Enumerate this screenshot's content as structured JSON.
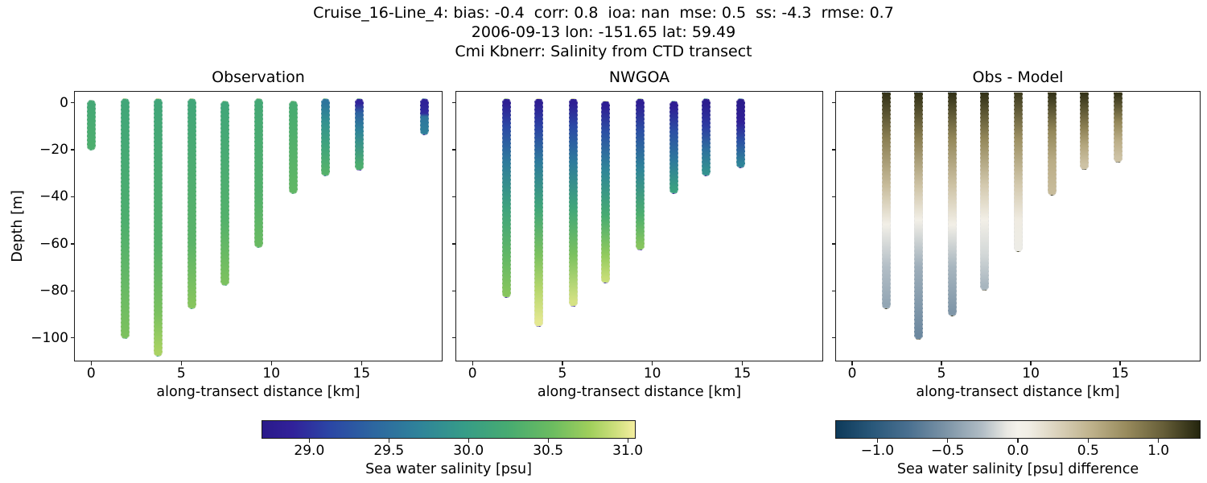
{
  "figure": {
    "title_line1": "Cruise_16-Line_4: bias: -0.4  corr: 0.8  ioa: nan  mse: 0.5  ss: -4.3  rmse: 0.7",
    "title_line2": "2006-09-13 lon: -151.65 lat: 59.49",
    "title_line3": "Cmi Kbnerr: Salinity from CTD transect"
  },
  "y_axis": {
    "label": "Depth [m]",
    "ticks": [
      "0",
      "−20",
      "−40",
      "−60",
      "−80",
      "−100"
    ],
    "tick_values": [
      0,
      -20,
      -40,
      -60,
      -80,
      -100
    ],
    "ylim": [
      5,
      -110
    ]
  },
  "x_axis": {
    "label": "along-transect distance [km]",
    "ticks": [
      "0",
      "5",
      "10",
      "15"
    ],
    "tick_values": [
      0,
      5,
      10,
      15
    ],
    "xlim": [
      -0.95,
      19.5
    ]
  },
  "chart_data": {
    "type": "scatter",
    "description": "Three-panel CTD transect: vertical salinity profiles colored by value; depth [m] vs along-transect distance [km]",
    "panels": [
      {
        "title": "Observation",
        "colorbar_index": 0,
        "flat_top": false,
        "bars": [
          {
            "x_km": 0.0,
            "profile": [
              [
                -0.8,
                30.2
              ],
              [
                -18.5,
                30.3
              ]
            ]
          },
          {
            "x_km": 1.9,
            "profile": [
              [
                0,
                30.15
              ],
              [
                -50,
                30.3
              ],
              [
                -98.5,
                30.6
              ]
            ]
          },
          {
            "x_km": 3.7,
            "profile": [
              [
                0,
                30.15
              ],
              [
                -60,
                30.35
              ],
              [
                -90,
                30.6
              ],
              [
                -106,
                30.8
              ]
            ]
          },
          {
            "x_km": 5.6,
            "profile": [
              [
                0,
                30.15
              ],
              [
                -60,
                30.4
              ],
              [
                -86,
                30.65
              ]
            ]
          },
          {
            "x_km": 7.4,
            "profile": [
              [
                -1,
                30.15
              ],
              [
                -50,
                30.35
              ],
              [
                -76,
                30.6
              ]
            ]
          },
          {
            "x_km": 9.3,
            "profile": [
              [
                0,
                30.2
              ],
              [
                -40,
                30.35
              ],
              [
                -60,
                30.5
              ]
            ]
          },
          {
            "x_km": 11.2,
            "profile": [
              [
                -1,
                30.25
              ],
              [
                -37,
                30.45
              ]
            ]
          },
          {
            "x_km": 13.0,
            "profile": [
              [
                0,
                29.55
              ],
              [
                -8,
                29.85
              ],
              [
                -18,
                30.1
              ],
              [
                -29.5,
                30.35
              ]
            ]
          },
          {
            "x_km": 14.9,
            "profile": [
              [
                0,
                28.9
              ],
              [
                -4,
                29.35
              ],
              [
                -12,
                29.7
              ],
              [
                -27,
                30.3
              ]
            ]
          },
          {
            "x_km": 18.5,
            "profile": [
              [
                0,
                28.85
              ],
              [
                -4.5,
                28.95
              ],
              [
                -6,
                29.55
              ],
              [
                -12,
                29.65
              ]
            ]
          }
        ]
      },
      {
        "title": "NWGOA",
        "colorbar_index": 0,
        "flat_top": false,
        "bars": [
          {
            "x_km": 1.9,
            "profile": [
              [
                0,
                28.8
              ],
              [
                -10,
                29.15
              ],
              [
                -25,
                29.6
              ],
              [
                -45,
                30.1
              ],
              [
                -65,
                30.45
              ],
              [
                -81,
                30.65
              ]
            ]
          },
          {
            "x_km": 3.7,
            "profile": [
              [
                0,
                28.8
              ],
              [
                -10,
                29.1
              ],
              [
                -25,
                29.6
              ],
              [
                -45,
                30.15
              ],
              [
                -65,
                30.6
              ],
              [
                -80,
                30.85
              ],
              [
                -93.5,
                31.0
              ]
            ]
          },
          {
            "x_km": 5.6,
            "profile": [
              [
                0,
                28.8
              ],
              [
                -10,
                29.15
              ],
              [
                -25,
                29.6
              ],
              [
                -45,
                30.15
              ],
              [
                -65,
                30.6
              ],
              [
                -85,
                30.95
              ]
            ]
          },
          {
            "x_km": 7.4,
            "profile": [
              [
                -1,
                28.8
              ],
              [
                -12,
                29.2
              ],
              [
                -28,
                29.7
              ],
              [
                -48,
                30.25
              ],
              [
                -65,
                30.7
              ],
              [
                -75,
                30.9
              ]
            ]
          },
          {
            "x_km": 9.3,
            "profile": [
              [
                0,
                28.8
              ],
              [
                -12,
                29.2
              ],
              [
                -28,
                29.7
              ],
              [
                -48,
                30.3
              ],
              [
                -61,
                30.65
              ]
            ]
          },
          {
            "x_km": 11.2,
            "profile": [
              [
                -1,
                28.8
              ],
              [
                -12,
                29.2
              ],
              [
                -25,
                29.6
              ],
              [
                -37,
                30.05
              ]
            ]
          },
          {
            "x_km": 13.0,
            "profile": [
              [
                0,
                28.75
              ],
              [
                -10,
                29.05
              ],
              [
                -20,
                29.5
              ],
              [
                -29.5,
                29.85
              ]
            ]
          },
          {
            "x_km": 14.9,
            "profile": [
              [
                0,
                28.72
              ],
              [
                -8,
                28.85
              ],
              [
                -16,
                29.2
              ],
              [
                -26,
                29.7
              ]
            ]
          }
        ]
      },
      {
        "title": "Obs - Model",
        "colorbar_index": 1,
        "flat_top": true,
        "bars": [
          {
            "x_km": 1.9,
            "profile": [
              [
                4.8,
                1.25
              ],
              [
                -15,
                0.85
              ],
              [
                -35,
                0.45
              ],
              [
                -52,
                0.05
              ],
              [
                -70,
                -0.25
              ],
              [
                -86,
                -0.4
              ]
            ]
          },
          {
            "x_km": 3.7,
            "profile": [
              [
                4.8,
                1.25
              ],
              [
                -15,
                0.85
              ],
              [
                -35,
                0.4
              ],
              [
                -50,
                0.05
              ],
              [
                -70,
                -0.35
              ],
              [
                -99,
                -0.6
              ]
            ]
          },
          {
            "x_km": 5.6,
            "profile": [
              [
                4.8,
                1.25
              ],
              [
                -15,
                0.8
              ],
              [
                -35,
                0.4
              ],
              [
                -52,
                0.05
              ],
              [
                -70,
                -0.3
              ],
              [
                -89,
                -0.5
              ]
            ]
          },
          {
            "x_km": 7.4,
            "profile": [
              [
                4.8,
                1.25
              ],
              [
                -15,
                0.8
              ],
              [
                -35,
                0.35
              ],
              [
                -50,
                0.05
              ],
              [
                -65,
                -0.15
              ],
              [
                -78,
                -0.3
              ]
            ]
          },
          {
            "x_km": 9.3,
            "profile": [
              [
                4.8,
                1.2
              ],
              [
                -15,
                0.75
              ],
              [
                -35,
                0.35
              ],
              [
                -50,
                0.1
              ],
              [
                -61.5,
                -0.05
              ]
            ]
          },
          {
            "x_km": 11.2,
            "profile": [
              [
                4.8,
                1.25
              ],
              [
                -12,
                0.8
              ],
              [
                -25,
                0.55
              ],
              [
                -37.5,
                0.45
              ]
            ]
          },
          {
            "x_km": 13.0,
            "profile": [
              [
                4.8,
                1.25
              ],
              [
                -10,
                0.85
              ],
              [
                -18,
                0.6
              ],
              [
                -26.5,
                0.4
              ]
            ]
          },
          {
            "x_km": 14.9,
            "profile": [
              [
                4.8,
                1.25
              ],
              [
                -8,
                0.8
              ],
              [
                -16,
                0.55
              ],
              [
                -23.5,
                0.4
              ]
            ]
          }
        ]
      }
    ],
    "colorbars": [
      {
        "label": "Sea water salinity [psu]",
        "ticks": [
          "29.0",
          "29.5",
          "30.0",
          "30.5",
          "31.0"
        ],
        "tick_values": [
          29.0,
          29.5,
          30.0,
          30.5,
          31.0
        ],
        "vmin": 28.7,
        "vmax": 31.05,
        "stops": [
          [
            0,
            "#2a1a8a"
          ],
          [
            0.08,
            "#31219a"
          ],
          [
            0.18,
            "#2b46a5"
          ],
          [
            0.3,
            "#2d67a0"
          ],
          [
            0.42,
            "#2f839a"
          ],
          [
            0.54,
            "#369c88"
          ],
          [
            0.66,
            "#47ab71"
          ],
          [
            0.78,
            "#6cbc60"
          ],
          [
            0.88,
            "#a0cf5c"
          ],
          [
            0.95,
            "#cfe07e"
          ],
          [
            1,
            "#f4ee9f"
          ]
        ]
      },
      {
        "label": "Sea water salinity [psu] difference",
        "ticks": [
          "−1.0",
          "−0.5",
          "0.0",
          "0.5",
          "1.0"
        ],
        "tick_values": [
          -1.0,
          -0.5,
          0.0,
          0.5,
          1.0
        ],
        "vmin": -1.3,
        "vmax": 1.3,
        "stops": [
          [
            0,
            "#0e3a5a"
          ],
          [
            0.1,
            "#29587a"
          ],
          [
            0.2,
            "#4a7090"
          ],
          [
            0.3,
            "#7b93a6"
          ],
          [
            0.4,
            "#b0bcc4"
          ],
          [
            0.47,
            "#e9e8e3"
          ],
          [
            0.5,
            "#f4f2eb"
          ],
          [
            0.53,
            "#f1eee5"
          ],
          [
            0.6,
            "#ddd5c0"
          ],
          [
            0.7,
            "#bfb28c"
          ],
          [
            0.8,
            "#978a5c"
          ],
          [
            0.9,
            "#665e38"
          ],
          [
            1,
            "#24250e"
          ]
        ]
      }
    ]
  }
}
